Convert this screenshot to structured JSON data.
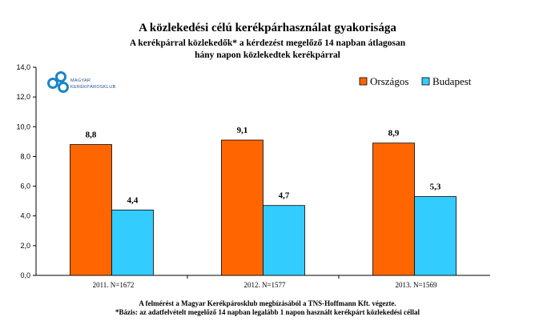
{
  "chart_data": {
    "type": "bar",
    "title": "A közlekedési célú kerékpárhasználat gyakorisága",
    "subtitle": "A kerékpárral közlekedők* a kérdezést megelőző 14 napban átlagosan hány napon közlekedtek kerékpárral",
    "categories": [
      "2011. N=1672",
      "2012. N=1577",
      "2013. N=1569"
    ],
    "series": [
      {
        "name": "Országos",
        "color": "#ff6600",
        "values": [
          8.8,
          9.1,
          8.9
        ],
        "labels": [
          "8,8",
          "9,1",
          "8,9"
        ]
      },
      {
        "name": "Budapest",
        "color": "#33ccff",
        "values": [
          4.4,
          4.7,
          5.3
        ],
        "labels": [
          "4,4",
          "4,7",
          "5,3"
        ]
      }
    ],
    "ylim": [
      0,
      14
    ],
    "yticks": [
      "0,0",
      "2,0",
      "4,0",
      "6,0",
      "8,0",
      "10,0",
      "12,0",
      "14,0"
    ],
    "legend_position": "top-right",
    "grid": false
  },
  "logo": {
    "line1": "MAGYAR",
    "line2": "KERÉKPÁROSKLUB"
  },
  "footnotes": {
    "line1": "A felmérést a Magyar Kerékpárosklub megbízásából a TNS-Hoffmann Kft. végezte.",
    "line2": "*Bázis: az adatfelvételt megelőző 14 napban legalább 1 napon használt kerékpárt közlekedési céllal"
  }
}
